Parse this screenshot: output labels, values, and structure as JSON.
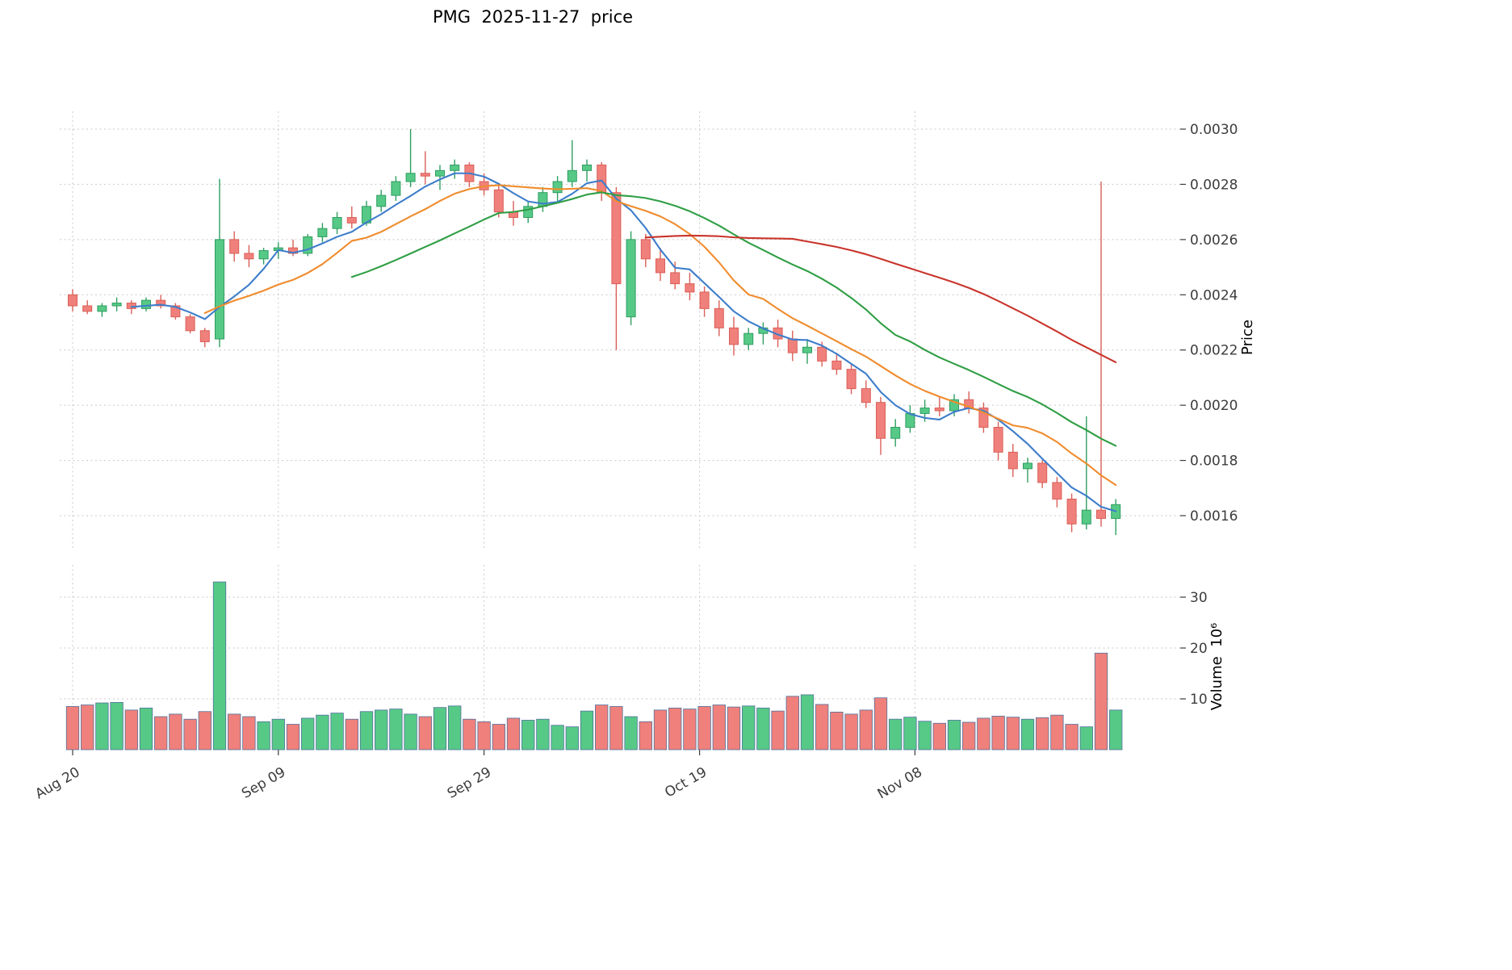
{
  "title": "PMG  2025-11-27  price",
  "axes": {
    "price_label": "Price",
    "volume_label": "Volume  10⁶",
    "price_ticks": [
      "0.0016",
      "0.0018",
      "0.0020",
      "0.0022",
      "0.0024",
      "0.0026",
      "0.0028",
      "0.0030"
    ],
    "volume_ticks": [
      "10",
      "20",
      "30"
    ],
    "x_ticks": [
      {
        "label": "Aug 20",
        "index": 0
      },
      {
        "label": "Sep 09",
        "index": 14
      },
      {
        "label": "Sep 29",
        "index": 28
      },
      {
        "label": "Oct 19",
        "index": 42.67
      },
      {
        "label": "Nov 08",
        "index": 57.33
      }
    ]
  },
  "colors": {
    "up": "#56c987",
    "up_edge": "#2f9e60",
    "down": "#f0807b",
    "down_edge": "#da5f58",
    "vol_edge": "#51719c",
    "grid": "#c9c9c9",
    "tick_text": "#3c3c3c"
  },
  "chart_data": {
    "type": "candlestick+volume",
    "symbol": "PMG",
    "as_of_date": "2025-11-27",
    "title": "PMG  2025-11-27  price",
    "ylabel_price": "Price",
    "ylabel_volume": "Volume 10^6",
    "price_range": [
      0.0016,
      0.003
    ],
    "volume_range_millions": [
      0,
      35
    ],
    "grid": true,
    "legend": false,
    "moving_averages": [
      {
        "name": "MA5",
        "period": 5,
        "color": "#3d7dca"
      },
      {
        "name": "MA10",
        "period": 10,
        "color": "#f08c2e"
      },
      {
        "name": "MA20",
        "period": 20,
        "color": "#2f9e44"
      },
      {
        "name": "MA40",
        "period": 40,
        "color": "#c9352b"
      }
    ],
    "candles_format": [
      "date",
      "open",
      "high",
      "low",
      "close",
      "volume_millions"
    ],
    "candles": [
      [
        "2025-08-20",
        0.0024,
        0.00242,
        0.00234,
        0.00236,
        8.5
      ],
      [
        "2025-08-21",
        0.00236,
        0.00238,
        0.00233,
        0.00234,
        8.8
      ],
      [
        "2025-08-22",
        0.00234,
        0.00237,
        0.00232,
        0.00236,
        9.2
      ],
      [
        "2025-08-25",
        0.00236,
        0.00239,
        0.00234,
        0.00237,
        9.3
      ],
      [
        "2025-08-26",
        0.00237,
        0.00238,
        0.00233,
        0.00235,
        7.8
      ],
      [
        "2025-08-27",
        0.00235,
        0.00239,
        0.00234,
        0.00238,
        8.2
      ],
      [
        "2025-08-28",
        0.00238,
        0.0024,
        0.00235,
        0.00236,
        6.5
      ],
      [
        "2025-08-29",
        0.00236,
        0.00237,
        0.00231,
        0.00232,
        7.0
      ],
      [
        "2025-09-01",
        0.00232,
        0.00233,
        0.00226,
        0.00227,
        6.0
      ],
      [
        "2025-09-02",
        0.00227,
        0.00228,
        0.00221,
        0.00223,
        7.5
      ],
      [
        "2025-09-03",
        0.00224,
        0.00282,
        0.00221,
        0.0026,
        33.0
      ],
      [
        "2025-09-04",
        0.0026,
        0.00263,
        0.00252,
        0.00255,
        7.0
      ],
      [
        "2025-09-05",
        0.00255,
        0.00258,
        0.0025,
        0.00253,
        6.5
      ],
      [
        "2025-09-08",
        0.00253,
        0.00257,
        0.00251,
        0.00256,
        5.5
      ],
      [
        "2025-09-09",
        0.00256,
        0.00259,
        0.00253,
        0.00257,
        6.0
      ],
      [
        "2025-09-10",
        0.00257,
        0.0026,
        0.00254,
        0.00255,
        5.0
      ],
      [
        "2025-09-11",
        0.00255,
        0.00262,
        0.00254,
        0.00261,
        6.2
      ],
      [
        "2025-09-12",
        0.00261,
        0.00266,
        0.00259,
        0.00264,
        6.8
      ],
      [
        "2025-09-15",
        0.00264,
        0.0027,
        0.00262,
        0.00268,
        7.2
      ],
      [
        "2025-09-16",
        0.00268,
        0.00272,
        0.00264,
        0.00266,
        6.0
      ],
      [
        "2025-09-17",
        0.00266,
        0.00274,
        0.00265,
        0.00272,
        7.5
      ],
      [
        "2025-09-18",
        0.00272,
        0.00278,
        0.0027,
        0.00276,
        7.8
      ],
      [
        "2025-09-19",
        0.00276,
        0.00283,
        0.00274,
        0.00281,
        8.0
      ],
      [
        "2025-09-22",
        0.00281,
        0.003,
        0.00279,
        0.00284,
        7.0
      ],
      [
        "2025-09-23",
        0.00284,
        0.00292,
        0.0028,
        0.00283,
        6.5
      ],
      [
        "2025-09-24",
        0.00283,
        0.00287,
        0.00278,
        0.00285,
        8.3
      ],
      [
        "2025-09-25",
        0.00285,
        0.00289,
        0.00282,
        0.00287,
        8.6
      ],
      [
        "2025-09-26",
        0.00287,
        0.00288,
        0.00279,
        0.00281,
        6.0
      ],
      [
        "2025-09-29",
        0.00281,
        0.00284,
        0.00276,
        0.00278,
        5.5
      ],
      [
        "2025-09-30",
        0.00278,
        0.0028,
        0.00268,
        0.0027,
        5.0
      ],
      [
        "2025-10-01",
        0.0027,
        0.00274,
        0.00265,
        0.00268,
        6.2
      ],
      [
        "2025-10-02",
        0.00268,
        0.00274,
        0.00266,
        0.00272,
        5.8
      ],
      [
        "2025-10-03",
        0.00272,
        0.00279,
        0.0027,
        0.00277,
        6.0
      ],
      [
        "2025-10-06",
        0.00277,
        0.00283,
        0.00274,
        0.00281,
        4.8
      ],
      [
        "2025-10-07",
        0.00281,
        0.00296,
        0.00279,
        0.00285,
        4.5
      ],
      [
        "2025-10-08",
        0.00285,
        0.00289,
        0.00281,
        0.00287,
        7.6
      ],
      [
        "2025-10-09",
        0.00287,
        0.00288,
        0.00274,
        0.00277,
        8.8
      ],
      [
        "2025-10-10",
        0.00277,
        0.00279,
        0.0022,
        0.00244,
        8.5
      ],
      [
        "2025-10-13",
        0.00232,
        0.00263,
        0.00229,
        0.0026,
        6.5
      ],
      [
        "2025-10-14",
        0.0026,
        0.00262,
        0.0025,
        0.00253,
        5.5
      ],
      [
        "2025-10-15",
        0.00253,
        0.00257,
        0.00245,
        0.00248,
        7.8
      ],
      [
        "2025-10-16",
        0.00248,
        0.00252,
        0.00242,
        0.00244,
        8.2
      ],
      [
        "2025-10-17",
        0.00244,
        0.00248,
        0.00238,
        0.00241,
        8.0
      ],
      [
        "2025-10-20",
        0.00241,
        0.00243,
        0.00232,
        0.00235,
        8.5
      ],
      [
        "2025-10-21",
        0.00235,
        0.00238,
        0.00225,
        0.00228,
        8.8
      ],
      [
        "2025-10-22",
        0.00228,
        0.00232,
        0.00218,
        0.00222,
        8.4
      ],
      [
        "2025-10-23",
        0.00222,
        0.00228,
        0.0022,
        0.00226,
        8.6
      ],
      [
        "2025-10-24",
        0.00226,
        0.0023,
        0.00222,
        0.00228,
        8.2
      ],
      [
        "2025-10-27",
        0.00228,
        0.00231,
        0.00221,
        0.00224,
        7.6
      ],
      [
        "2025-10-28",
        0.00224,
        0.00227,
        0.00216,
        0.00219,
        10.5
      ],
      [
        "2025-10-29",
        0.00219,
        0.00224,
        0.00215,
        0.00221,
        10.8
      ],
      [
        "2025-10-30",
        0.00221,
        0.00223,
        0.00214,
        0.00216,
        8.9
      ],
      [
        "2025-10-31",
        0.00216,
        0.00219,
        0.00211,
        0.00213,
        7.4
      ],
      [
        "2025-11-03",
        0.00213,
        0.00215,
        0.00204,
        0.00206,
        7.0
      ],
      [
        "2025-11-04",
        0.00206,
        0.00209,
        0.00199,
        0.00201,
        7.8
      ],
      [
        "2025-11-05",
        0.00201,
        0.00203,
        0.00182,
        0.00188,
        10.2
      ],
      [
        "2025-11-06",
        0.00188,
        0.00195,
        0.00185,
        0.00192,
        6.0
      ],
      [
        "2025-11-07",
        0.00192,
        0.002,
        0.0019,
        0.00197,
        6.4
      ],
      [
        "2025-11-10",
        0.00197,
        0.00202,
        0.00194,
        0.00199,
        5.6
      ],
      [
        "2025-11-11",
        0.00199,
        0.00203,
        0.00196,
        0.00198,
        5.2
      ],
      [
        "2025-11-12",
        0.00198,
        0.00204,
        0.00196,
        0.00202,
        5.8
      ],
      [
        "2025-11-13",
        0.00202,
        0.00205,
        0.00197,
        0.00199,
        5.4
      ],
      [
        "2025-11-14",
        0.00199,
        0.00201,
        0.0019,
        0.00192,
        6.2
      ],
      [
        "2025-11-17",
        0.00192,
        0.00194,
        0.0018,
        0.00183,
        6.6
      ],
      [
        "2025-11-18",
        0.00183,
        0.00186,
        0.00174,
        0.00177,
        6.4
      ],
      [
        "2025-11-19",
        0.00177,
        0.00181,
        0.00172,
        0.00179,
        6.0
      ],
      [
        "2025-11-20",
        0.00179,
        0.0018,
        0.0017,
        0.00172,
        6.3
      ],
      [
        "2025-11-21",
        0.00172,
        0.00174,
        0.00163,
        0.00166,
        6.8
      ],
      [
        "2025-11-24",
        0.00166,
        0.00168,
        0.00154,
        0.00157,
        5.0
      ],
      [
        "2025-11-25",
        0.00157,
        0.00196,
        0.00155,
        0.00162,
        4.5
      ],
      [
        "2025-11-26",
        0.00162,
        0.00281,
        0.00156,
        0.00159,
        19.0
      ],
      [
        "2025-11-27",
        0.00159,
        0.00166,
        0.00153,
        0.00164,
        7.8
      ]
    ]
  }
}
